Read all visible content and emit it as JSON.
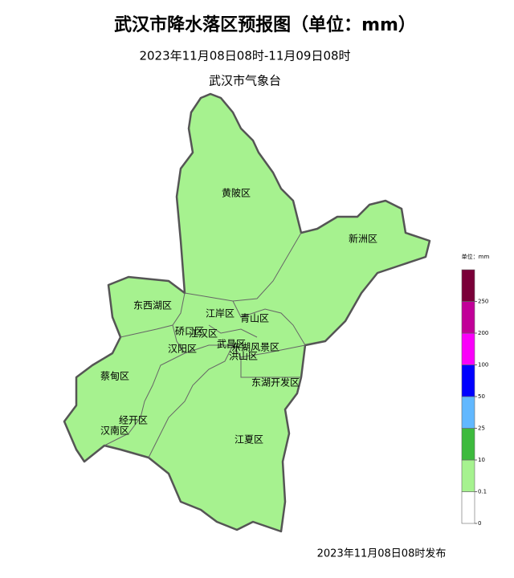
{
  "header": {
    "title": "武汉市降水落区预报图（单位：mm）",
    "period": "2023年11月08日08时-11月09日08时",
    "issuer": "武汉市气象台"
  },
  "districts": [
    "黄陂区",
    "新洲区",
    "东西湖区",
    "江岸区",
    "青山区",
    "硚口区",
    "江汉区",
    "汉阳区",
    "武昌区",
    "洪山区",
    "东湖风景区",
    "蔡甸区",
    "东湖开发区",
    "经开区",
    "汉南区",
    "江夏区"
  ],
  "legend": {
    "title": "单位：mm",
    "ticks": [
      0,
      0.1,
      10,
      25,
      50,
      100,
      200,
      250
    ],
    "colors": [
      "#ffffff",
      "#a6f28f",
      "#3dba3d",
      "#61b8ff",
      "#0000ff",
      "#fa00fa",
      "#c10098",
      "#7a0038"
    ]
  },
  "footer": "2023年11月08日08时发布"
}
